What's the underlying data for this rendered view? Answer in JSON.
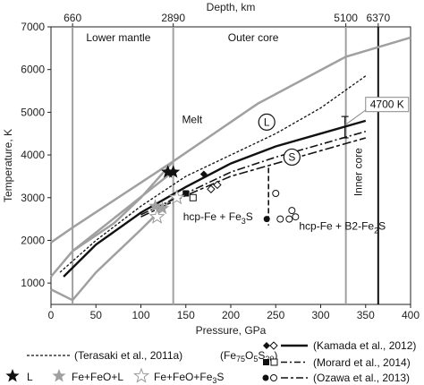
{
  "chart_data": {
    "type": "line",
    "xlabel": "Pressure, GPa",
    "ylabel": "Temperature, K",
    "top_axis_label": "Depth, km",
    "xlim": [
      0,
      400
    ],
    "ylim": [
      500,
      7000
    ],
    "x_ticks": [
      0,
      50,
      100,
      150,
      200,
      250,
      300,
      350,
      400
    ],
    "y_ticks": [
      1000,
      2000,
      3000,
      4000,
      5000,
      6000,
      7000
    ],
    "depth_ticks": [
      {
        "label": "660",
        "pressure": 24
      },
      {
        "label": "2890",
        "pressure": 136
      },
      {
        "label": "5100",
        "pressure": 328
      },
      {
        "label": "6370",
        "pressure": 364
      }
    ],
    "regions": [
      {
        "label": "Lower mantle",
        "pressure": 75
      },
      {
        "label": "Outer core",
        "pressure": 225
      }
    ],
    "annotations": {
      "melt": "Melt",
      "l_marker": "L",
      "s_marker": "S",
      "t4700": "4700 K",
      "hcp_fe3s_a": "hcp-Fe + Fe",
      "hcp_fe3s_sub": "3",
      "hcp_fe3s_b": "S",
      "hcp_b2_a": "hcp-Fe + B2-Fe",
      "hcp_b2_sub": "2",
      "hcp_b2_b": "S",
      "inner_core": "Inner core"
    },
    "series": [
      {
        "id": "geotherm_upper",
        "points": [
          [
            0,
            1950
          ],
          [
            24,
            2300
          ],
          [
            136,
            3850
          ],
          [
            230,
            5200
          ],
          [
            328,
            6300
          ],
          [
            400,
            6750
          ]
        ]
      },
      {
        "id": "geotherm_lower",
        "points": [
          [
            0,
            1150
          ],
          [
            24,
            1750
          ],
          [
            135,
            3600
          ]
        ]
      },
      {
        "id": "mantle_solidus",
        "points": [
          [
            0,
            850
          ],
          [
            24,
            600
          ],
          [
            50,
            1250
          ],
          [
            100,
            2250
          ],
          [
            136,
            3000
          ]
        ]
      },
      {
        "id": "mantle_liquidus",
        "points": [
          [
            24,
            1750
          ],
          [
            70,
            2400
          ],
          [
            100,
            3000
          ],
          [
            136,
            3850
          ]
        ]
      },
      {
        "id": "terasaki_melt",
        "points": [
          [
            10,
            1250
          ],
          [
            50,
            2000
          ],
          [
            100,
            2800
          ],
          [
            150,
            3500
          ],
          [
            200,
            4000
          ],
          [
            250,
            4500
          ],
          [
            300,
            5100
          ],
          [
            350,
            5850
          ]
        ]
      },
      {
        "id": "kamada",
        "points": [
          [
            14,
            1150
          ],
          [
            50,
            1900
          ],
          [
            100,
            2650
          ],
          [
            150,
            3250
          ],
          [
            200,
            3800
          ],
          [
            250,
            4200
          ],
          [
            300,
            4500
          ],
          [
            350,
            4800
          ]
        ]
      },
      {
        "id": "morard",
        "points": [
          [
            100,
            2600
          ],
          [
            150,
            3100
          ],
          [
            200,
            3600
          ],
          [
            250,
            3950
          ],
          [
            300,
            4250
          ],
          [
            350,
            4550
          ]
        ]
      },
      {
        "id": "ozawa",
        "points": [
          [
            100,
            2550
          ],
          [
            150,
            3050
          ],
          [
            200,
            3500
          ],
          [
            250,
            3800
          ],
          [
            300,
            4100
          ],
          [
            350,
            4400
          ]
        ]
      },
      {
        "id": "fe3s_boundary",
        "points": [
          [
            242,
            3700
          ],
          [
            242,
            2350
          ]
        ]
      }
    ],
    "points": {
      "kamada_filled": [
        [
          170,
          3550
        ]
      ],
      "kamada_open": [
        [
          185,
          3300
        ],
        [
          178,
          3200
        ]
      ],
      "morard_filled": [
        [
          150,
          3100
        ]
      ],
      "morard_open": [
        [
          158,
          3000
        ]
      ],
      "ozawa_filled": [
        [
          240,
          2500
        ]
      ],
      "ozawa_open": [
        [
          250,
          3100
        ],
        [
          255,
          2500
        ],
        [
          265,
          2500
        ],
        [
          268,
          2700
        ],
        [
          272,
          2550
        ]
      ],
      "star_l": [
        [
          130,
          3600
        ],
        [
          136,
          3600
        ]
      ],
      "star_fe_feo_l": [
        [
          116,
          2800
        ],
        [
          124,
          2750
        ]
      ],
      "star_fe_feo_fe3s": [
        [
          118,
          2550
        ],
        [
          140,
          3000
        ]
      ]
    },
    "errorbar": {
      "x": 327,
      "y": 4700,
      "low": 4400,
      "high": 4900
    },
    "legend": [
      {
        "marker": "dotted-line",
        "text": "(Terasaki et al., 2011a)",
        "formula": "(Fe",
        "f1": "75",
        "f2": "O",
        "f3": "5",
        "f4": "S",
        "f5": "20",
        "f6": ")"
      },
      {
        "marker": "diamond-solid",
        "text": "(Kamada et al., 2012)"
      },
      {
        "marker": "square-dashdot",
        "text": "(Morard et al., 2014)"
      },
      {
        "marker": "circle-dashdash",
        "text": "(Ozawa et al., 2013)"
      },
      {
        "marker": "star-black",
        "text": "L"
      },
      {
        "marker": "star-gray",
        "text": "Fe+FeO+L"
      },
      {
        "marker": "star-open",
        "text": "Fe+FeO+Fe",
        "sub": "3",
        "tail": "S"
      }
    ]
  }
}
